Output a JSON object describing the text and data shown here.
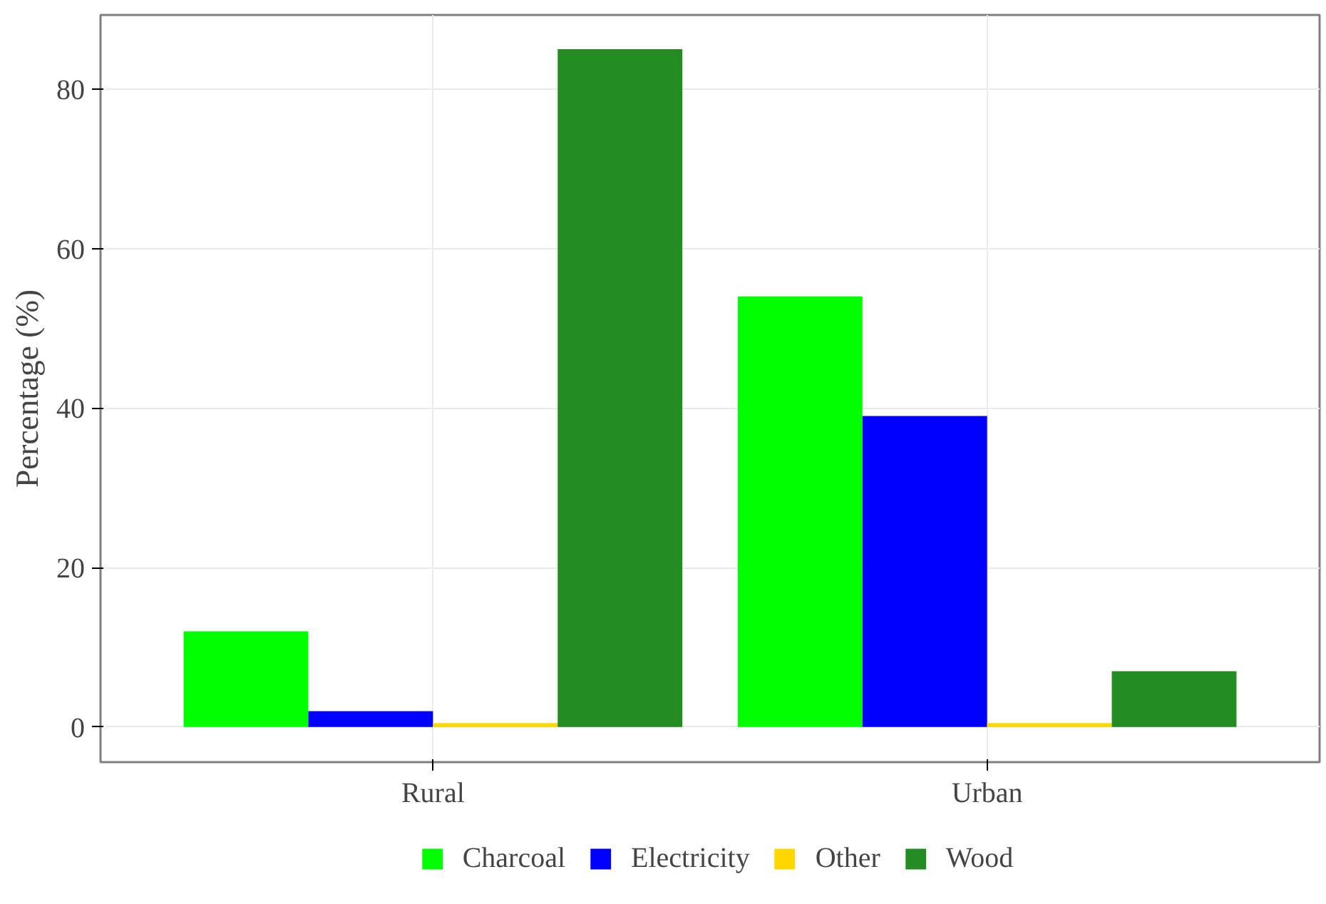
{
  "chart_data": {
    "type": "bar",
    "ylabel": "Percentage (%)",
    "categories": [
      "Rural",
      "Urban"
    ],
    "series": [
      {
        "name": "Charcoal",
        "color": "#00ff00",
        "values": [
          12,
          54
        ]
      },
      {
        "name": "Electricity",
        "color": "#0000ff",
        "values": [
          2,
          39
        ]
      },
      {
        "name": "Other",
        "color": "#ffd700",
        "values": [
          0.5,
          0.5
        ]
      },
      {
        "name": "Wood",
        "color": "#228b22",
        "values": [
          85,
          7
        ]
      }
    ],
    "ylim": [
      -4.4,
      89.3
    ],
    "yticks": [
      0,
      20,
      40,
      60,
      80
    ],
    "grid": true,
    "legend": "bottom"
  }
}
